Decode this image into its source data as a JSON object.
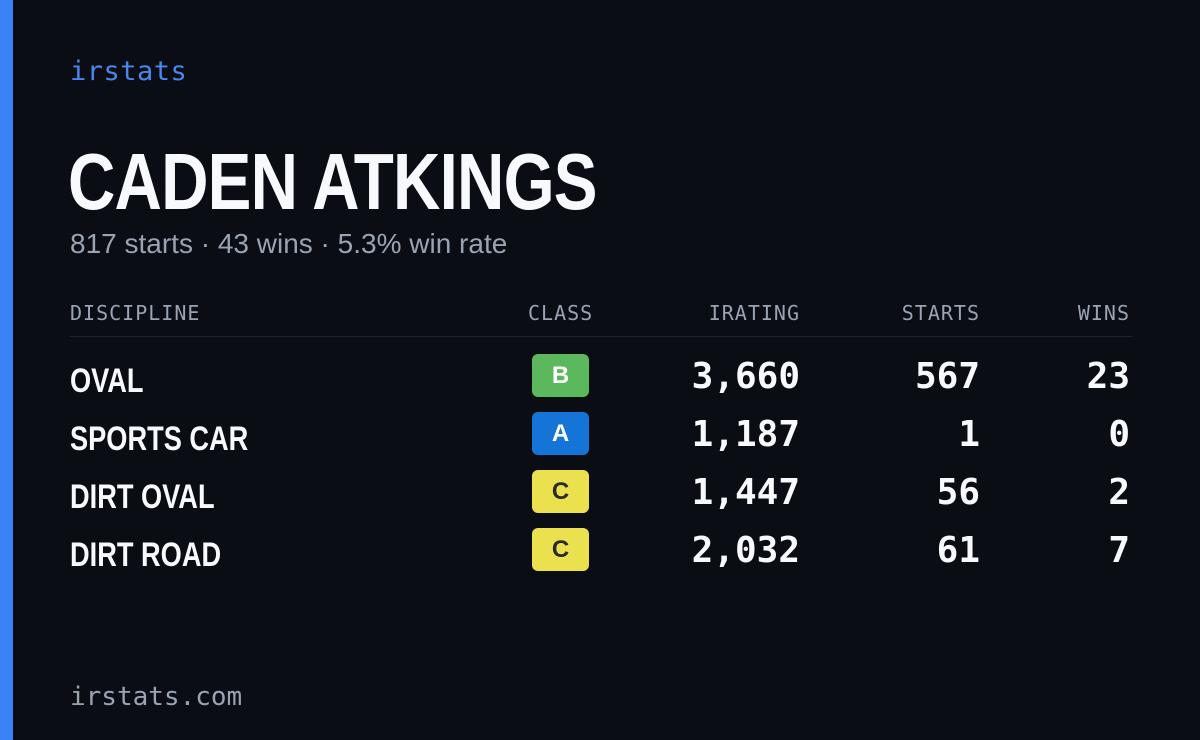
{
  "brand": "irstats",
  "player": {
    "name": "CADEN ATKINGS",
    "summary": "817 starts · 43 wins · 5.3% win rate"
  },
  "table": {
    "headers": {
      "discipline": "DISCIPLINE",
      "class": "CLASS",
      "irating": "IRATING",
      "starts": "STARTS",
      "wins": "WINS"
    },
    "rows": [
      {
        "discipline": "OVAL",
        "class": "B",
        "class_color": "#5cb85c",
        "class_text_color": "#ffffff",
        "irating": "3,660",
        "starts": "567",
        "wins": "23"
      },
      {
        "discipline": "SPORTS CAR",
        "class": "A",
        "class_color": "#1474d8",
        "class_text_color": "#ffffff",
        "irating": "1,187",
        "starts": "1",
        "wins": "0"
      },
      {
        "discipline": "DIRT OVAL",
        "class": "C",
        "class_color": "#ebe14e",
        "class_text_color": "#2a2a2a",
        "irating": "1,447",
        "starts": "56",
        "wins": "2"
      },
      {
        "discipline": "DIRT ROAD",
        "class": "C",
        "class_color": "#ebe14e",
        "class_text_color": "#2a2a2a",
        "irating": "2,032",
        "starts": "61",
        "wins": "7"
      }
    ]
  },
  "footer": {
    "url": "irstats.com"
  },
  "colors": {
    "background": "#0a0d14",
    "accent": "#3b82f6",
    "brand_text": "#4a86f0",
    "muted_text": "#9aa3b2"
  }
}
